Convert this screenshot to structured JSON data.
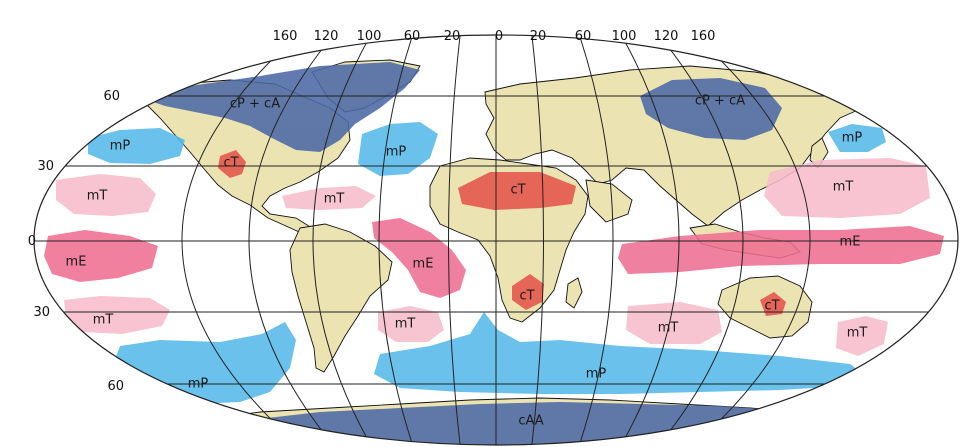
{
  "colors": {
    "land": "#ece3b3",
    "continental_polar": "#4c69a6",
    "maritime_polar": "#56b9ea",
    "maritime_tropical": "#f7bccc",
    "maritime_equatorial": "#ef6f92",
    "continental_tropical": "#e5544b"
  },
  "longitude_labels": [
    "160",
    "120",
    "100",
    "60",
    "20",
    "0",
    "20",
    "60",
    "100",
    "120",
    "160"
  ],
  "latitude_labels": {
    "n60": "60",
    "n30": "30",
    "eq": "0",
    "s30": "30",
    "s60": "60"
  },
  "air_masses": [
    {
      "label": "cP + cA",
      "kind": "continental_polar"
    },
    {
      "label": "cP + cA",
      "kind": "continental_polar"
    },
    {
      "label": "mP",
      "kind": "maritime_polar"
    },
    {
      "label": "mP",
      "kind": "maritime_polar"
    },
    {
      "label": "mP",
      "kind": "maritime_polar"
    },
    {
      "label": "cT",
      "kind": "continental_tropical"
    },
    {
      "label": "cT",
      "kind": "continental_tropical"
    },
    {
      "label": "mT",
      "kind": "maritime_tropical"
    },
    {
      "label": "mT",
      "kind": "maritime_tropical"
    },
    {
      "label": "mT",
      "kind": "maritime_tropical"
    },
    {
      "label": "mE",
      "kind": "maritime_equatorial"
    },
    {
      "label": "mE",
      "kind": "maritime_equatorial"
    },
    {
      "label": "mE",
      "kind": "maritime_equatorial"
    },
    {
      "label": "cT",
      "kind": "continental_tropical"
    },
    {
      "label": "cT",
      "kind": "continental_tropical"
    },
    {
      "label": "mT",
      "kind": "maritime_tropical"
    },
    {
      "label": "mT",
      "kind": "maritime_tropical"
    },
    {
      "label": "mT",
      "kind": "maritime_tropical"
    },
    {
      "label": "mT",
      "kind": "maritime_tropical"
    },
    {
      "label": "mP",
      "kind": "maritime_polar"
    },
    {
      "label": "mP",
      "kind": "maritime_polar"
    },
    {
      "label": "cAA",
      "kind": "continental_polar"
    }
  ]
}
